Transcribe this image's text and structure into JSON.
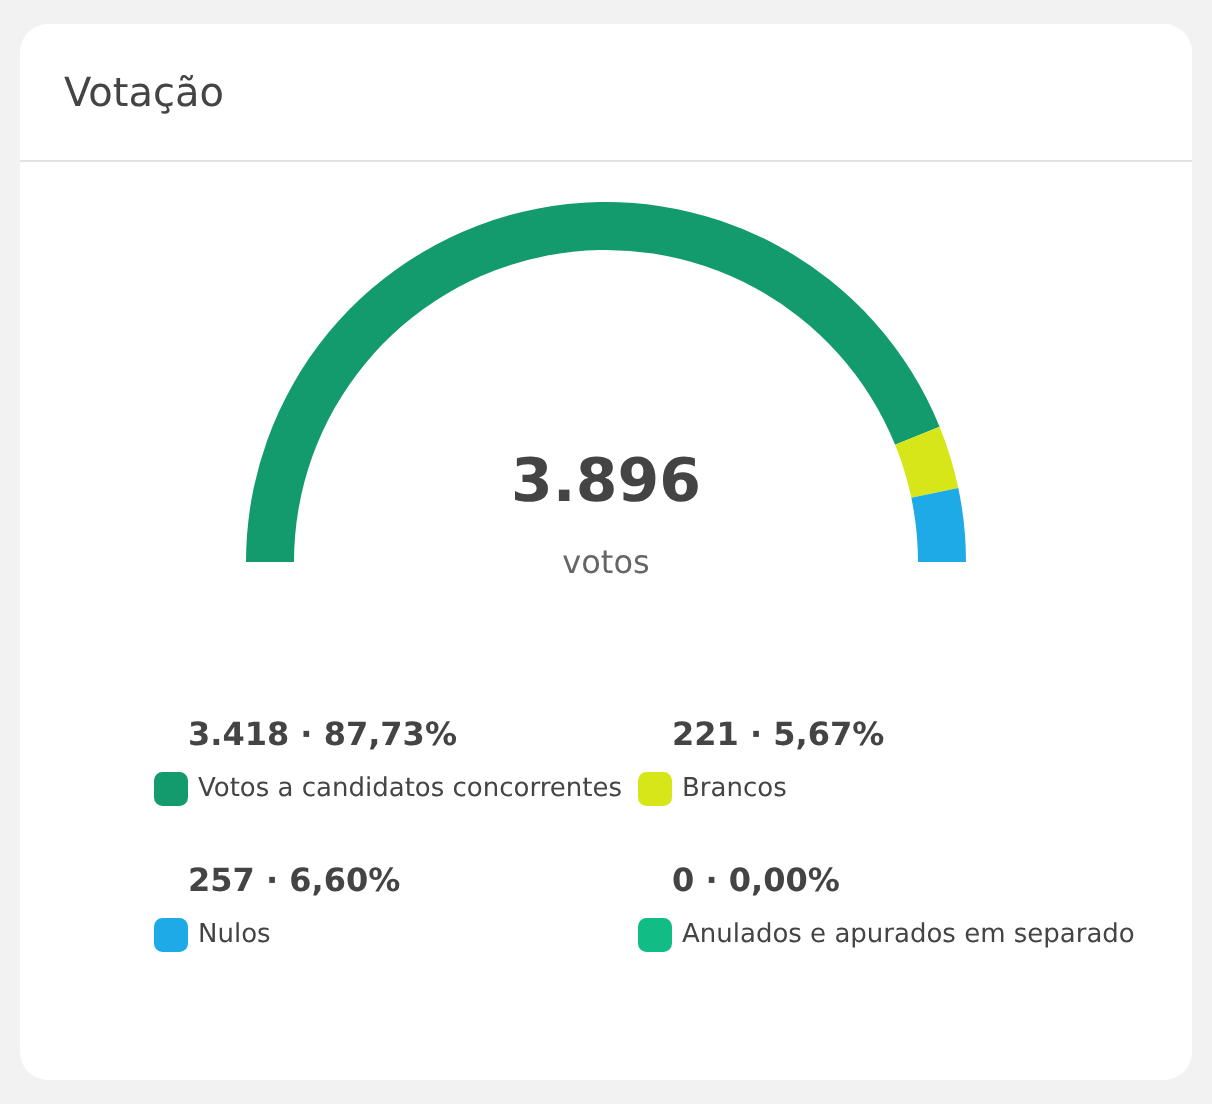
{
  "chart_data": {
    "type": "donut",
    "title": "Votação",
    "annotations": [
      "3.896",
      "votos"
    ],
    "categories": [
      "Votos a candidatos concorrentes",
      "Brancos",
      "Nulos",
      "Anulados e apurados em separado"
    ],
    "values": [
      3418,
      221,
      257,
      0
    ],
    "value_labels": [
      "3.418 · 87,73%",
      "221 · 5,67%",
      "257 · 6,60%",
      "0 · 0,00%"
    ],
    "colors": [
      "#139b6e",
      "#d7e619",
      "#1eaae6",
      "#12bd85"
    ],
    "legend": "bottom"
  }
}
